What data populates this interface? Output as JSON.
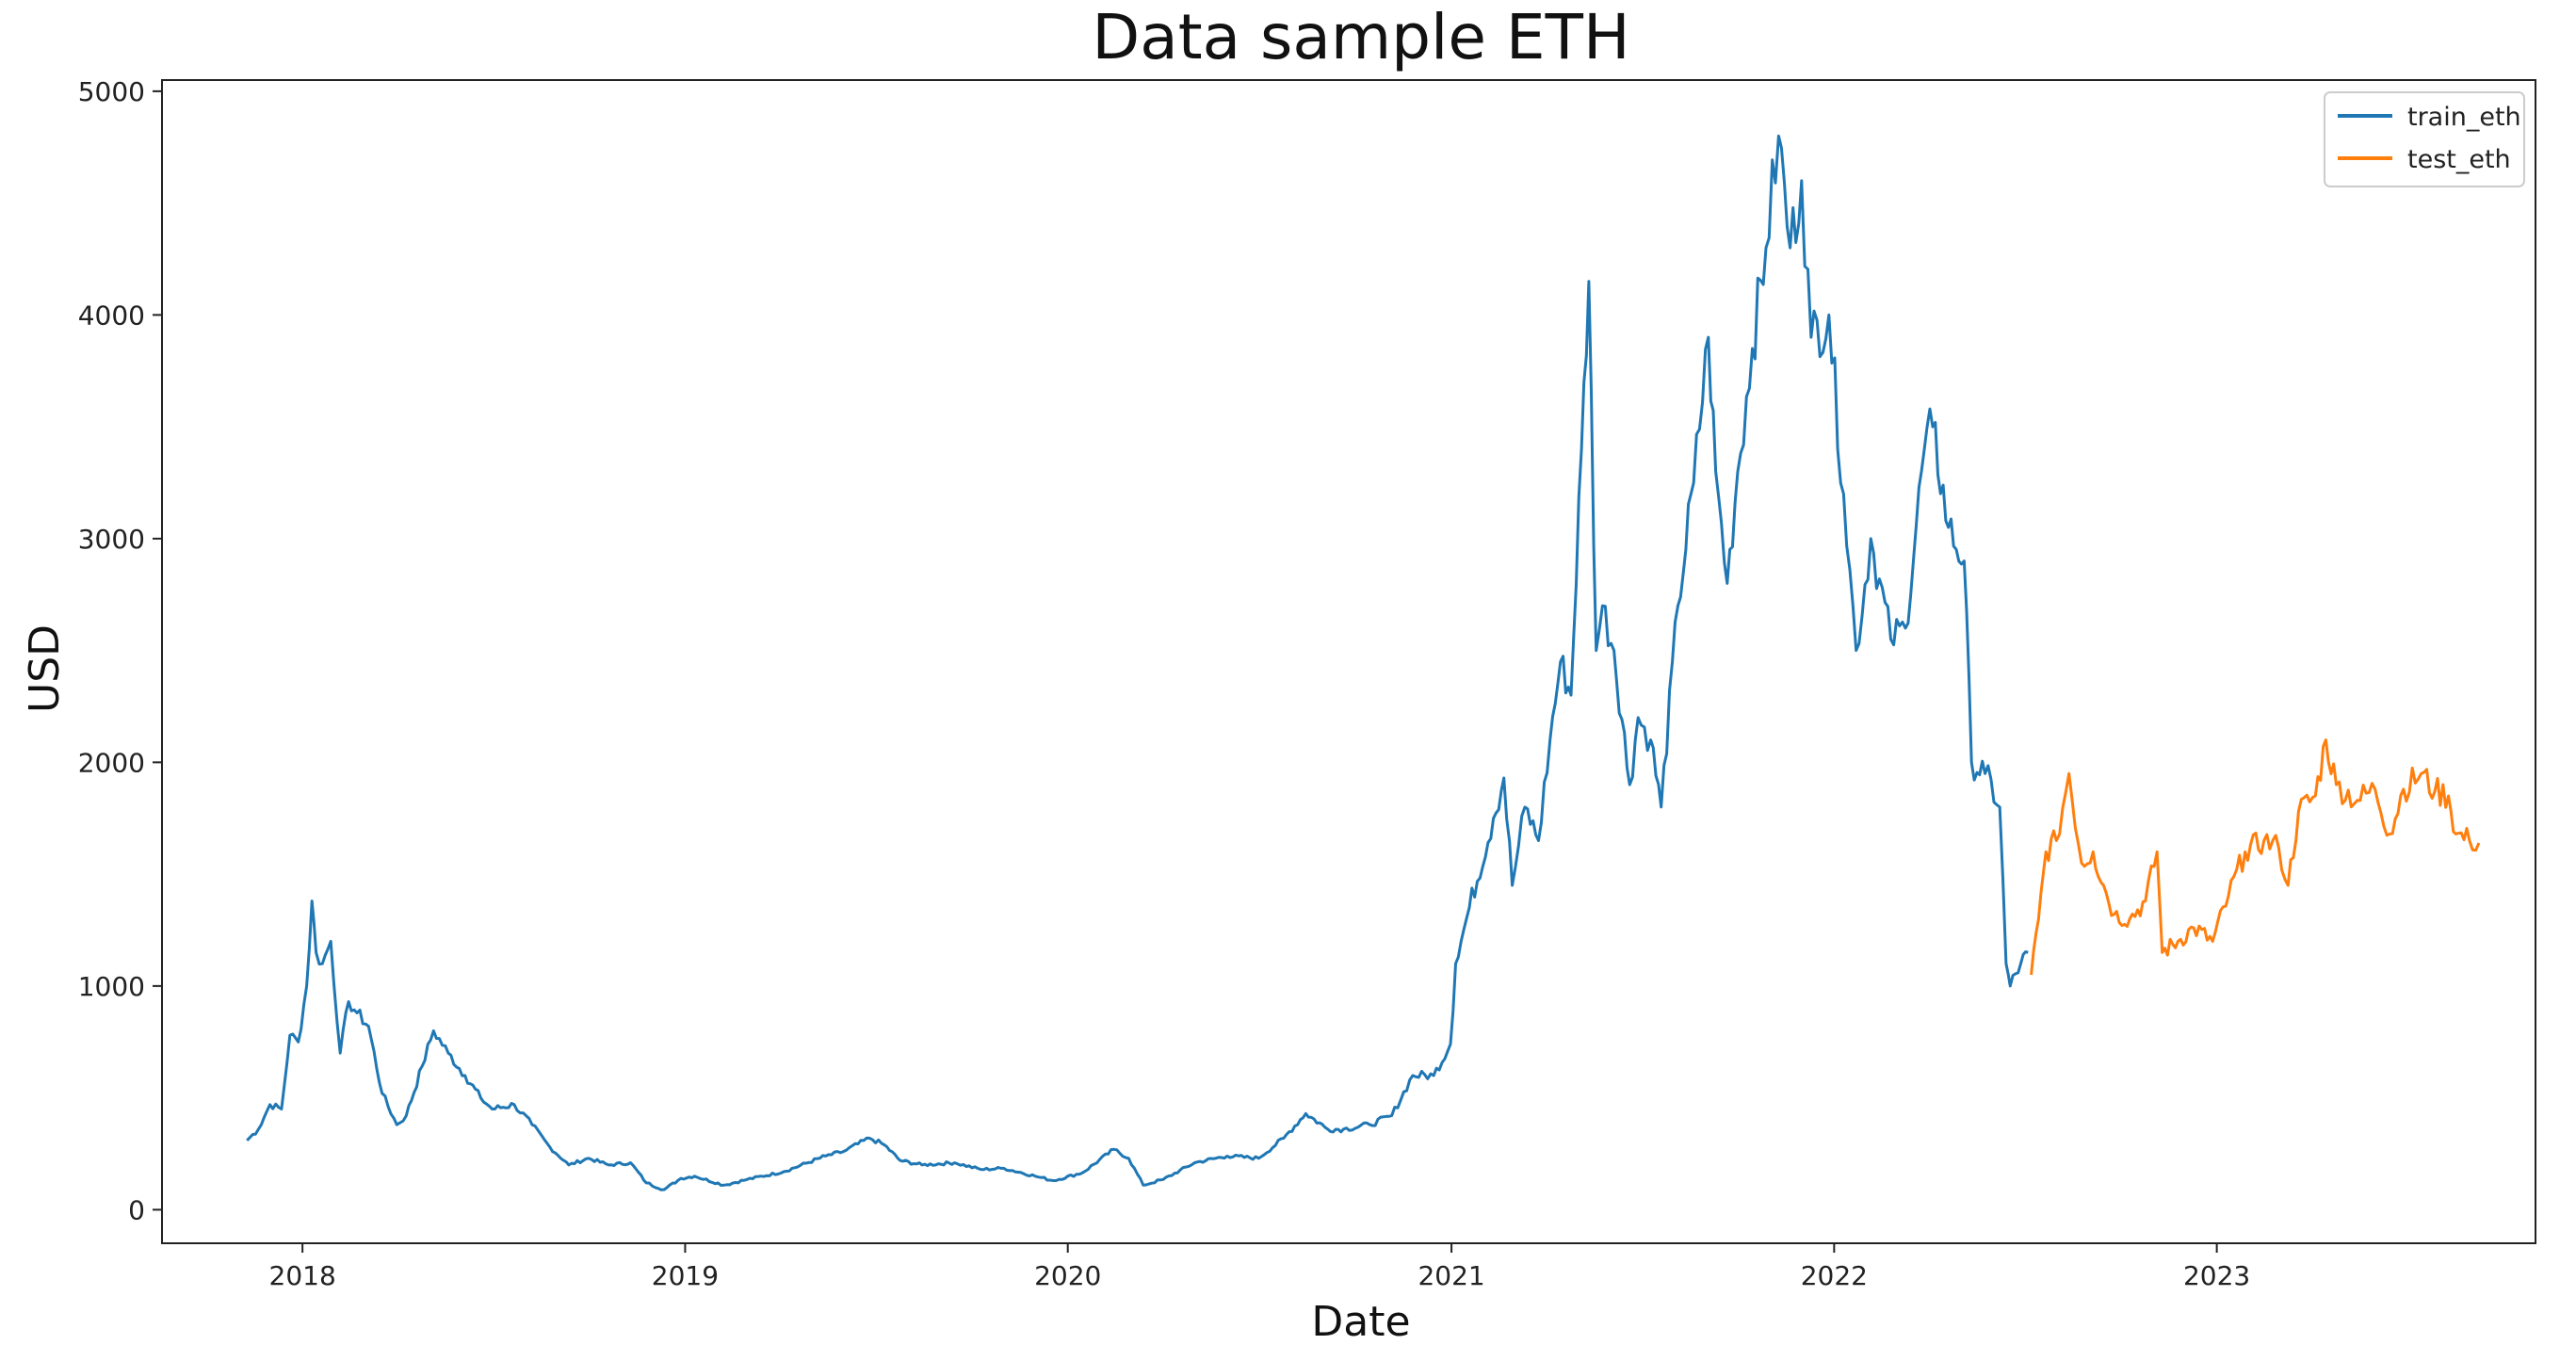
{
  "chart_data": {
    "type": "line",
    "title": "Data sample ETH",
    "xlabel": "Date",
    "ylabel": "USD",
    "xlim": [
      "2017-08-20",
      "2023-11-01"
    ],
    "ylim": [
      -150,
      5050
    ],
    "yticks": [
      0,
      1000,
      2000,
      3000,
      4000,
      5000
    ],
    "xticks": [
      "2018",
      "2019",
      "2020",
      "2021",
      "2022",
      "2023"
    ],
    "grid": false,
    "legend_position": "top-right",
    "colors": {
      "train": "#1f77b4",
      "test": "#ff7f0e"
    },
    "series": [
      {
        "name": "train_eth",
        "points": [
          [
            "2017-11-09",
            310
          ],
          [
            "2017-11-20",
            360
          ],
          [
            "2017-12-01",
            470
          ],
          [
            "2017-12-12",
            450
          ],
          [
            "2017-12-20",
            780
          ],
          [
            "2017-12-28",
            750
          ],
          [
            "2018-01-05",
            1000
          ],
          [
            "2018-01-10",
            1380
          ],
          [
            "2018-01-14",
            1150
          ],
          [
            "2018-01-20",
            1100
          ],
          [
            "2018-01-28",
            1200
          ],
          [
            "2018-02-06",
            700
          ],
          [
            "2018-02-14",
            930
          ],
          [
            "2018-02-22",
            880
          ],
          [
            "2018-03-05",
            820
          ],
          [
            "2018-03-18",
            520
          ],
          [
            "2018-04-01",
            380
          ],
          [
            "2018-04-10",
            420
          ],
          [
            "2018-04-25",
            640
          ],
          [
            "2018-05-06",
            800
          ],
          [
            "2018-05-20",
            700
          ],
          [
            "2018-06-05",
            600
          ],
          [
            "2018-06-20",
            500
          ],
          [
            "2018-07-01",
            450
          ],
          [
            "2018-07-22",
            470
          ],
          [
            "2018-08-08",
            380
          ],
          [
            "2018-08-25",
            280
          ],
          [
            "2018-09-12",
            200
          ],
          [
            "2018-10-01",
            230
          ],
          [
            "2018-10-20",
            200
          ],
          [
            "2018-11-10",
            210
          ],
          [
            "2018-11-25",
            120
          ],
          [
            "2018-12-12",
            90
          ],
          [
            "2018-12-28",
            140
          ],
          [
            "2019-01-10",
            150
          ],
          [
            "2019-02-07",
            110
          ],
          [
            "2019-03-01",
            135
          ],
          [
            "2019-04-05",
            170
          ],
          [
            "2019-05-15",
            240
          ],
          [
            "2019-06-01",
            260
          ],
          [
            "2019-06-26",
            320
          ],
          [
            "2019-07-10",
            290
          ],
          [
            "2019-07-25",
            220
          ],
          [
            "2019-08-15",
            200
          ],
          [
            "2019-09-15",
            210
          ],
          [
            "2019-10-10",
            180
          ],
          [
            "2019-11-01",
            185
          ],
          [
            "2019-12-01",
            150
          ],
          [
            "2019-12-18",
            130
          ],
          [
            "2020-01-15",
            165
          ],
          [
            "2020-02-14",
            270
          ],
          [
            "2020-02-28",
            230
          ],
          [
            "2020-03-13",
            110
          ],
          [
            "2020-04-01",
            135
          ],
          [
            "2020-05-01",
            210
          ],
          [
            "2020-06-01",
            240
          ],
          [
            "2020-07-01",
            230
          ],
          [
            "2020-07-25",
            320
          ],
          [
            "2020-08-15",
            430
          ],
          [
            "2020-09-05",
            360
          ],
          [
            "2020-09-20",
            360
          ],
          [
            "2020-10-15",
            380
          ],
          [
            "2020-11-05",
            420
          ],
          [
            "2020-11-25",
            600
          ],
          [
            "2020-12-15",
            600
          ],
          [
            "2020-12-31",
            740
          ],
          [
            "2021-01-05",
            1100
          ],
          [
            "2021-01-18",
            1350
          ],
          [
            "2021-02-10",
            1750
          ],
          [
            "2021-02-20",
            1930
          ],
          [
            "2021-02-28",
            1450
          ],
          [
            "2021-03-12",
            1800
          ],
          [
            "2021-03-25",
            1650
          ],
          [
            "2021-04-05",
            2100
          ],
          [
            "2021-04-15",
            2450
          ],
          [
            "2021-04-25",
            2300
          ],
          [
            "2021-05-05",
            3400
          ],
          [
            "2021-05-12",
            4150
          ],
          [
            "2021-05-19",
            2500
          ],
          [
            "2021-05-25",
            2700
          ],
          [
            "2021-06-05",
            2500
          ],
          [
            "2021-06-20",
            1900
          ],
          [
            "2021-06-28",
            2200
          ],
          [
            "2021-07-10",
            2100
          ],
          [
            "2021-07-20",
            1800
          ],
          [
            "2021-08-05",
            2700
          ],
          [
            "2021-08-20",
            3250
          ],
          [
            "2021-09-03",
            3900
          ],
          [
            "2021-09-10",
            3300
          ],
          [
            "2021-09-21",
            2800
          ],
          [
            "2021-10-01",
            3300
          ],
          [
            "2021-10-15",
            3850
          ],
          [
            "2021-10-28",
            4300
          ],
          [
            "2021-11-09",
            4800
          ],
          [
            "2021-11-20",
            4300
          ],
          [
            "2021-12-01",
            4600
          ],
          [
            "2021-12-10",
            3900
          ],
          [
            "2021-12-27",
            4000
          ],
          [
            "2022-01-10",
            3200
          ],
          [
            "2022-01-22",
            2500
          ],
          [
            "2022-02-05",
            3000
          ],
          [
            "2022-02-24",
            2550
          ],
          [
            "2022-03-10",
            2600
          ],
          [
            "2022-03-28",
            3400
          ],
          [
            "2022-04-05",
            3500
          ],
          [
            "2022-04-20",
            3050
          ],
          [
            "2022-05-05",
            2900
          ],
          [
            "2022-05-12",
            2000
          ],
          [
            "2022-05-25",
            1950
          ],
          [
            "2022-06-08",
            1800
          ],
          [
            "2022-06-14",
            1100
          ],
          [
            "2022-06-18",
            1000
          ],
          [
            "2022-06-28",
            1100
          ],
          [
            "2022-07-05",
            1150
          ]
        ]
      },
      {
        "name": "test_eth",
        "points": [
          [
            "2022-07-08",
            1050
          ],
          [
            "2022-07-15",
            1300
          ],
          [
            "2022-07-22",
            1600
          ],
          [
            "2022-08-01",
            1650
          ],
          [
            "2022-08-13",
            1950
          ],
          [
            "2022-08-25",
            1550
          ],
          [
            "2022-09-05",
            1600
          ],
          [
            "2022-09-15",
            1450
          ],
          [
            "2022-09-25",
            1320
          ],
          [
            "2022-10-10",
            1300
          ],
          [
            "2022-10-25",
            1380
          ],
          [
            "2022-11-05",
            1600
          ],
          [
            "2022-11-10",
            1150
          ],
          [
            "2022-11-25",
            1200
          ],
          [
            "2022-12-10",
            1260
          ],
          [
            "2022-12-28",
            1200
          ],
          [
            "2023-01-12",
            1400
          ],
          [
            "2023-01-28",
            1600
          ],
          [
            "2023-02-15",
            1650
          ],
          [
            "2023-03-01",
            1620
          ],
          [
            "2023-03-10",
            1450
          ],
          [
            "2023-03-20",
            1780
          ],
          [
            "2023-04-05",
            1850
          ],
          [
            "2023-04-15",
            2100
          ],
          [
            "2023-04-25",
            1900
          ],
          [
            "2023-05-15",
            1830
          ],
          [
            "2023-06-01",
            1880
          ],
          [
            "2023-06-15",
            1680
          ],
          [
            "2023-06-28",
            1880
          ],
          [
            "2023-07-15",
            1950
          ],
          [
            "2023-07-28",
            1870
          ],
          [
            "2023-08-10",
            1850
          ],
          [
            "2023-08-17",
            1680
          ],
          [
            "2023-08-30",
            1650
          ],
          [
            "2023-09-08",
            1640
          ]
        ]
      }
    ]
  }
}
